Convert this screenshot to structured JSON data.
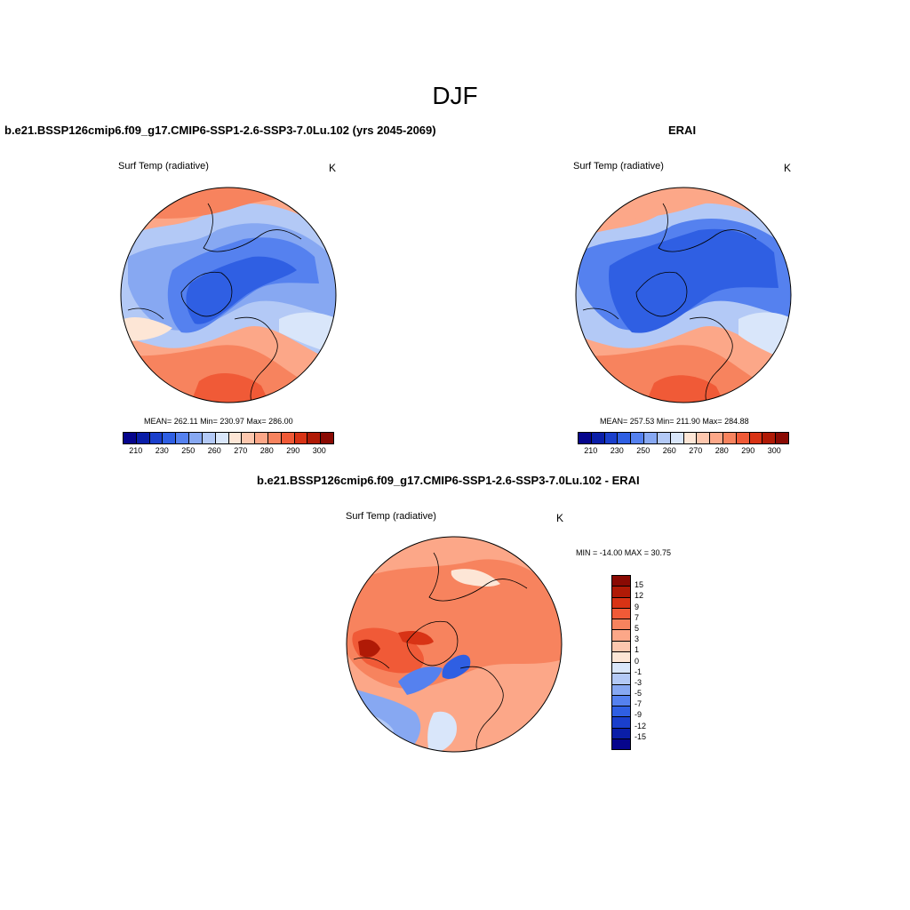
{
  "figure": {
    "title": "DJF"
  },
  "panels": {
    "model": {
      "title": "b.e21.BSSP126cmip6.f09_g17.CMIP6-SSP1-2.6-SSP3-7.0Lu.102 (yrs 2045-2069)",
      "variable": "Surf Temp (radiative)",
      "units": "K",
      "stats": "MEAN= 262.11  Min= 230.97  Max= 286.00"
    },
    "obs": {
      "title": "ERAI",
      "variable": "Surf Temp (radiative)",
      "units": "K",
      "stats": "MEAN= 257.53  Min= 211.90  Max= 284.88"
    },
    "diff": {
      "title": "b.e21.BSSP126cmip6.f09_g17.CMIP6-SSP1-2.6-SSP3-7.0Lu.102 - ERAI",
      "variable": "Surf Temp (radiative)",
      "units": "K",
      "minmax": "MIN = -14.00 MAX =  30.75"
    }
  },
  "colorbars": {
    "absolute": {
      "colors": [
        "#06058c",
        "#0a1ea8",
        "#1a3fcc",
        "#2f5fe3",
        "#5581ef",
        "#87a8f2",
        "#b3c9f6",
        "#d9e6fa",
        "#fde6d6",
        "#fdc7ae",
        "#fca788",
        "#f7835e",
        "#f05a37",
        "#d83315",
        "#b01a06",
        "#8a0a03"
      ],
      "labels": [
        "210",
        "230",
        "250",
        "260",
        "270",
        "280",
        "290",
        "300"
      ]
    },
    "difference": {
      "colors": [
        "#8a0a03",
        "#b01a06",
        "#d83315",
        "#f05a37",
        "#f7835e",
        "#fca788",
        "#fdc7ae",
        "#fde6d6",
        "#d9e6fa",
        "#b3c9f6",
        "#87a8f2",
        "#5581ef",
        "#2f5fe3",
        "#1a3fcc",
        "#0a1ea8",
        "#06058c"
      ],
      "labels": [
        "15",
        "12",
        "9",
        "7",
        "5",
        "3",
        "1",
        "0",
        "-1",
        "-3",
        "-5",
        "-7",
        "-9",
        "-12",
        "-15"
      ]
    }
  },
  "field_colors": {
    "cold_deep": "#2f5fe3",
    "cold": "#5581ef",
    "cool": "#87a8f2",
    "cool_light": "#b3c9f6",
    "pale_blue": "#d9e6fa",
    "warm_pale": "#fde6d6",
    "warm": "#fca788",
    "warm_mid": "#f7835e",
    "hot": "#f05a37",
    "hot_deep": "#d83315",
    "hottest": "#b01a06"
  }
}
